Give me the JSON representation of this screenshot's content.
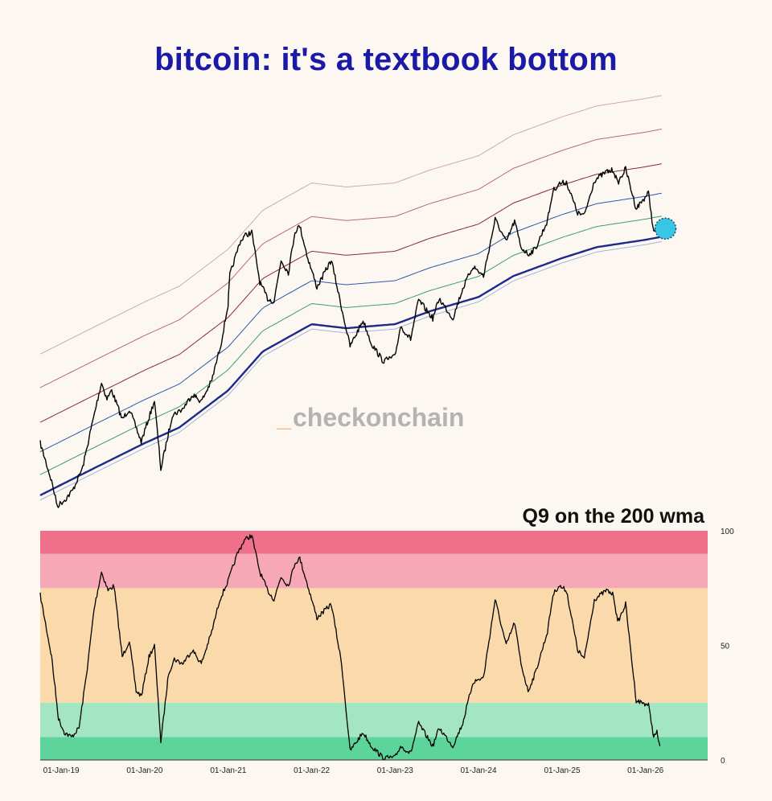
{
  "title": "bitcoin: it's a textbook bottom",
  "watermark": {
    "underscore": "_",
    "text": "checkonchain"
  },
  "chart_data": [
    {
      "type": "line",
      "log_scale": true,
      "x_range": [
        "2018-10-01",
        "2026-09-30"
      ],
      "bands_multiples": [
        1.0,
        1.25,
        1.6,
        2.2,
        3.2,
        4.6
      ],
      "band_colors": [
        "#1c2a8a",
        "#3aa06a",
        "#2a5aa8",
        "#8a2a3a",
        "#b46a7a",
        "#cfa8b8"
      ],
      "price_color": "#000000",
      "highlight_marker": {
        "date": "2026-03",
        "color": "#39c6e4"
      },
      "price_points": [
        [
          "2018-10-01",
          6500
        ],
        [
          "2018-11-20",
          4300
        ],
        [
          "2018-12-15",
          3300
        ],
        [
          "2019-01-20",
          3550
        ],
        [
          "2019-02-20",
          3900
        ],
        [
          "2019-04-05",
          5000
        ],
        [
          "2019-05-15",
          7900
        ],
        [
          "2019-06-26",
          12500
        ],
        [
          "2019-07-20",
          10500
        ],
        [
          "2019-08-10",
          11500
        ],
        [
          "2019-09-25",
          8400
        ],
        [
          "2019-10-26",
          9400
        ],
        [
          "2019-12-17",
          6600
        ],
        [
          "2020-02-13",
          10300
        ],
        [
          "2020-03-12",
          4900
        ],
        [
          "2020-05-01",
          8800
        ],
        [
          "2020-06-15",
          9400
        ],
        [
          "2020-07-28",
          11000
        ],
        [
          "2020-09-05",
          10200
        ],
        [
          "2020-10-21",
          12800
        ],
        [
          "2020-11-30",
          19000
        ],
        [
          "2020-12-31",
          29000
        ],
        [
          "2021-01-08",
          40000
        ],
        [
          "2021-02-21",
          57000
        ],
        [
          "2021-03-13",
          61000
        ],
        [
          "2021-04-14",
          63500
        ],
        [
          "2021-05-19",
          37000
        ],
        [
          "2021-06-22",
          31000
        ],
        [
          "2021-07-20",
          30000
        ],
        [
          "2021-08-20",
          47000
        ],
        [
          "2021-09-21",
          41000
        ],
        [
          "2021-10-20",
          64000
        ],
        [
          "2021-11-10",
          68000
        ],
        [
          "2021-12-15",
          48000
        ],
        [
          "2022-01-24",
          35000
        ],
        [
          "2022-03-28",
          47000
        ],
        [
          "2022-05-12",
          28000
        ],
        [
          "2022-06-18",
          18500
        ],
        [
          "2022-08-14",
          24500
        ],
        [
          "2022-09-20",
          19000
        ],
        [
          "2022-11-09",
          15800
        ],
        [
          "2022-12-31",
          16500
        ],
        [
          "2023-01-25",
          23000
        ],
        [
          "2023-03-10",
          20000
        ],
        [
          "2023-04-14",
          30500
        ],
        [
          "2023-06-15",
          25000
        ],
        [
          "2023-07-13",
          31000
        ],
        [
          "2023-09-11",
          25000
        ],
        [
          "2023-10-24",
          34500
        ],
        [
          "2023-12-08",
          44000
        ],
        [
          "2024-01-23",
          39500
        ],
        [
          "2024-03-14",
          73000
        ],
        [
          "2024-05-01",
          57000
        ],
        [
          "2024-06-07",
          71500
        ],
        [
          "2024-07-05",
          54000
        ],
        [
          "2024-08-05",
          50000
        ],
        [
          "2024-09-06",
          53000
        ],
        [
          "2024-10-29",
          72000
        ],
        [
          "2024-11-22",
          99000
        ],
        [
          "2024-12-17",
          107000
        ],
        [
          "2025-01-20",
          109000
        ],
        [
          "2025-03-10",
          78000
        ],
        [
          "2025-04-08",
          76000
        ],
        [
          "2025-05-22",
          111000
        ],
        [
          "2025-07-14",
          122000
        ],
        [
          "2025-08-14",
          124000
        ],
        [
          "2025-09-01",
          108000
        ],
        [
          "2025-10-06",
          126000
        ],
        [
          "2025-11-21",
          82000
        ],
        [
          "2026-01-14",
          97000
        ],
        [
          "2026-02-06",
          63000
        ],
        [
          "2026-02-20",
          68000
        ],
        [
          "2026-03-05",
          66000
        ]
      ],
      "base_points": [
        [
          "2018-10-01",
          3700
        ],
        [
          "2019-06-01",
          5000
        ],
        [
          "2020-01-01",
          6500
        ],
        [
          "2020-06-01",
          7700
        ],
        [
          "2021-01-01",
          11500
        ],
        [
          "2021-06-01",
          17500
        ],
        [
          "2022-01-01",
          23500
        ],
        [
          "2022-06-01",
          22500
        ],
        [
          "2023-01-01",
          23500
        ],
        [
          "2023-06-01",
          27000
        ],
        [
          "2024-01-01",
          31500
        ],
        [
          "2024-06-01",
          39500
        ],
        [
          "2025-01-01",
          48000
        ],
        [
          "2025-06-01",
          54000
        ],
        [
          "2026-01-01",
          58500
        ],
        [
          "2026-03-15",
          60500
        ]
      ]
    },
    {
      "type": "line",
      "title": "Q9 on the 200 wma",
      "x_ticks": [
        "01-Jan-19",
        "01-Jan-20",
        "01-Jan-21",
        "01-Jan-22",
        "01-Jan-23",
        "01-Jan-24",
        "01-Jan-25",
        "01-Jan-26"
      ],
      "x_tick_dates": [
        "2019-01-01",
        "2020-01-01",
        "2021-01-01",
        "2022-01-01",
        "2023-01-01",
        "2024-01-01",
        "2025-01-01",
        "2026-01-01"
      ],
      "y_ticks": [
        "100",
        "50",
        "0"
      ],
      "y_tick_values": [
        100,
        50,
        0
      ],
      "ylim": [
        0,
        100
      ],
      "zones": [
        {
          "from": 0,
          "to": 10,
          "color": "#5cd49a"
        },
        {
          "from": 10,
          "to": 25,
          "color": "#a4e6c4"
        },
        {
          "from": 25,
          "to": 75,
          "color": "#fadaab"
        },
        {
          "from": 75,
          "to": 90,
          "color": "#f6a8b6"
        },
        {
          "from": 90,
          "to": 100,
          "color": "#ee7189"
        }
      ],
      "series_points": [
        [
          "2018-10-01",
          72
        ],
        [
          "2018-11-20",
          45
        ],
        [
          "2018-12-20",
          18
        ],
        [
          "2019-01-15",
          12
        ],
        [
          "2019-02-15",
          10
        ],
        [
          "2019-03-20",
          14
        ],
        [
          "2019-04-25",
          40
        ],
        [
          "2019-05-25",
          66
        ],
        [
          "2019-06-26",
          82
        ],
        [
          "2019-07-25",
          74
        ],
        [
          "2019-08-20",
          76
        ],
        [
          "2019-09-25",
          45
        ],
        [
          "2019-10-26",
          52
        ],
        [
          "2019-11-25",
          30
        ],
        [
          "2019-12-18",
          28
        ],
        [
          "2020-01-20",
          45
        ],
        [
          "2020-02-13",
          50
        ],
        [
          "2020-03-12",
          8
        ],
        [
          "2020-04-15",
          38
        ],
        [
          "2020-05-10",
          44
        ],
        [
          "2020-06-15",
          42
        ],
        [
          "2020-07-28",
          48
        ],
        [
          "2020-09-05",
          42
        ],
        [
          "2020-10-21",
          56
        ],
        [
          "2020-11-25",
          70
        ],
        [
          "2020-12-31",
          78
        ],
        [
          "2021-02-10",
          90
        ],
        [
          "2021-03-13",
          96
        ],
        [
          "2021-04-14",
          98
        ],
        [
          "2021-05-19",
          82
        ],
        [
          "2021-06-22",
          74
        ],
        [
          "2021-07-20",
          70
        ],
        [
          "2021-08-20",
          80
        ],
        [
          "2021-09-21",
          76
        ],
        [
          "2021-10-20",
          86
        ],
        [
          "2021-11-10",
          88
        ],
        [
          "2021-12-15",
          76
        ],
        [
          "2022-01-24",
          62
        ],
        [
          "2022-03-28",
          68
        ],
        [
          "2022-05-12",
          42
        ],
        [
          "2022-06-18",
          4
        ],
        [
          "2022-08-14",
          12
        ],
        [
          "2022-09-20",
          6
        ],
        [
          "2022-11-09",
          1
        ],
        [
          "2022-12-31",
          1
        ],
        [
          "2023-01-25",
          6
        ],
        [
          "2023-03-10",
          3
        ],
        [
          "2023-04-14",
          16
        ],
        [
          "2023-06-15",
          6
        ],
        [
          "2023-07-13",
          14
        ],
        [
          "2023-09-11",
          6
        ],
        [
          "2023-10-24",
          16
        ],
        [
          "2023-12-08",
          34
        ],
        [
          "2024-01-23",
          36
        ],
        [
          "2024-03-14",
          70
        ],
        [
          "2024-05-01",
          50
        ],
        [
          "2024-06-07",
          60
        ],
        [
          "2024-07-05",
          42
        ],
        [
          "2024-08-05",
          30
        ],
        [
          "2024-09-06",
          38
        ],
        [
          "2024-10-29",
          56
        ],
        [
          "2024-11-22",
          72
        ],
        [
          "2024-12-17",
          76
        ],
        [
          "2025-01-20",
          74
        ],
        [
          "2025-03-10",
          48
        ],
        [
          "2025-04-08",
          44
        ],
        [
          "2025-05-22",
          70
        ],
        [
          "2025-07-14",
          74
        ],
        [
          "2025-08-14",
          72
        ],
        [
          "2025-09-01",
          60
        ],
        [
          "2025-10-06",
          68
        ],
        [
          "2025-11-21",
          26
        ],
        [
          "2026-01-14",
          24
        ],
        [
          "2026-02-06",
          10
        ],
        [
          "2026-02-20",
          12
        ],
        [
          "2026-03-05",
          6
        ]
      ]
    }
  ]
}
